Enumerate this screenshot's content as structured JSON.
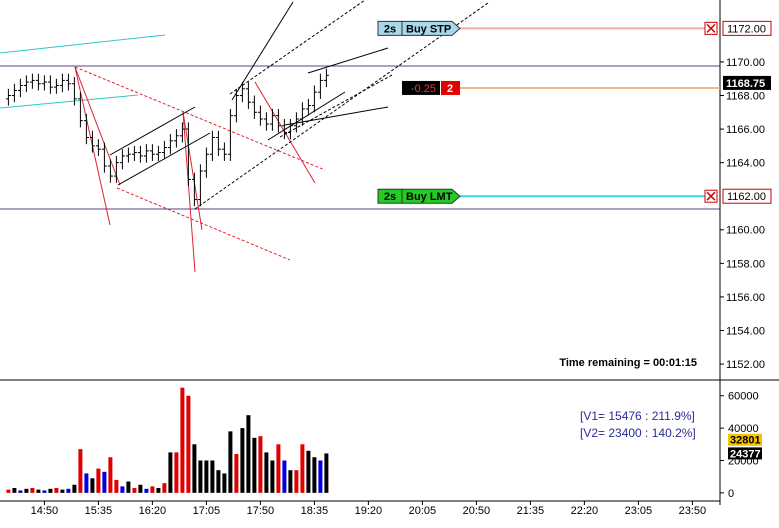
{
  "chart_data": [
    {
      "type": "ohlc",
      "color": "#000000",
      "x": [
        860,
        865,
        870,
        875,
        880,
        885,
        890,
        895,
        900,
        905,
        910,
        915,
        920,
        925,
        930,
        935,
        940,
        945,
        950,
        955,
        960,
        965,
        970,
        975,
        980,
        985,
        990,
        995,
        1000,
        1005,
        1010,
        1015,
        1020,
        1025,
        1030,
        1035,
        1040,
        1045,
        1050,
        1055,
        1060,
        1065,
        1070,
        1075,
        1080,
        1085,
        1090,
        1095,
        1100,
        1105,
        1110,
        1115,
        1120,
        1125
      ],
      "open": [
        1167.8,
        1168.0,
        1168.3,
        1168.6,
        1168.8,
        1168.9,
        1168.7,
        1168.8,
        1168.5,
        1168.6,
        1168.9,
        1168.7,
        1167.8,
        1166.5,
        1165.5,
        1165.0,
        1164.8,
        1163.8,
        1163.2,
        1164.0,
        1164.4,
        1164.5,
        1164.6,
        1164.4,
        1164.7,
        1164.5,
        1164.6,
        1164.9,
        1165.3,
        1165.6,
        1166.0,
        1163.0,
        1161.8,
        1163.5,
        1164.5,
        1165.5,
        1164.8,
        1164.5,
        1166.8,
        1168.0,
        1168.4,
        1167.6,
        1167.0,
        1166.6,
        1166.3,
        1166.8,
        1166.2,
        1165.8,
        1166.2,
        1166.6,
        1167.2,
        1167.4,
        1168.2,
        1168.9
      ],
      "high": [
        1168.4,
        1168.7,
        1169.0,
        1169.2,
        1169.3,
        1169.3,
        1169.2,
        1169.2,
        1169.0,
        1169.3,
        1169.3,
        1169.1,
        1168.2,
        1166.9,
        1165.9,
        1165.4,
        1165.2,
        1164.2,
        1164.4,
        1164.8,
        1164.9,
        1165.0,
        1165.0,
        1165.1,
        1165.1,
        1165.0,
        1165.3,
        1165.7,
        1166.0,
        1166.4,
        1166.4,
        1163.4,
        1163.9,
        1164.9,
        1165.9,
        1165.9,
        1165.2,
        1167.2,
        1168.4,
        1168.8,
        1168.8,
        1168.0,
        1167.4,
        1167.0,
        1167.2,
        1167.2,
        1166.6,
        1166.6,
        1167.0,
        1167.6,
        1167.8,
        1168.6,
        1169.3,
        1169.6
      ],
      "low": [
        1167.4,
        1167.6,
        1167.9,
        1168.2,
        1168.4,
        1168.3,
        1168.3,
        1168.1,
        1168.1,
        1168.2,
        1168.3,
        1167.4,
        1166.1,
        1165.1,
        1164.6,
        1164.4,
        1163.4,
        1162.8,
        1162.8,
        1163.6,
        1164.0,
        1164.1,
        1164.0,
        1164.0,
        1164.1,
        1164.1,
        1164.2,
        1164.5,
        1164.9,
        1165.2,
        1162.6,
        1161.4,
        1161.4,
        1163.1,
        1164.1,
        1164.4,
        1164.1,
        1164.1,
        1166.4,
        1167.6,
        1167.2,
        1166.6,
        1166.2,
        1165.9,
        1165.9,
        1165.8,
        1165.4,
        1165.4,
        1165.8,
        1166.2,
        1166.8,
        1167.0,
        1167.8,
        1168.5
      ],
      "close": [
        1168.0,
        1168.3,
        1168.6,
        1168.8,
        1168.9,
        1168.7,
        1168.8,
        1168.5,
        1168.6,
        1168.9,
        1168.7,
        1167.8,
        1166.5,
        1165.5,
        1165.0,
        1164.8,
        1163.8,
        1163.2,
        1164.0,
        1164.4,
        1164.5,
        1164.6,
        1164.4,
        1164.7,
        1164.5,
        1164.6,
        1164.9,
        1165.3,
        1165.6,
        1166.0,
        1163.0,
        1161.8,
        1163.5,
        1164.5,
        1165.5,
        1164.8,
        1164.5,
        1166.8,
        1168.0,
        1168.4,
        1167.6,
        1167.0,
        1166.6,
        1166.3,
        1166.8,
        1166.2,
        1165.8,
        1166.2,
        1166.6,
        1167.2,
        1167.4,
        1168.2,
        1168.9,
        1169.2
      ],
      "xlim": [
        853,
        1453
      ],
      "ylim": [
        1151.05,
        1173.69
      ],
      "yticks": [
        {
          "value": 1152,
          "label": "1152.00"
        },
        {
          "value": 1154,
          "label": "1154.00"
        },
        {
          "value": 1156,
          "label": "1156.00"
        },
        {
          "value": 1158,
          "label": "1158.00"
        },
        {
          "value": 1160,
          "label": "1160.00"
        },
        {
          "value": 1164,
          "label": "1164.00"
        },
        {
          "value": 1166,
          "label": "1166.00"
        },
        {
          "value": 1168,
          "label": "1168.00"
        },
        {
          "value": 1170,
          "label": "1170.00"
        }
      ],
      "orders": [
        {
          "label": "2s",
          "text": "Buy STP",
          "price": {
            "value": 1172,
            "label": "1172.00"
          },
          "color": "#f4a8b0",
          "tag_color": "#a8d8ea"
        },
        {
          "label": "2s",
          "text": "Buy LMT",
          "price": {
            "value": 1162,
            "label": "1162.00"
          },
          "color": "#33d6e8",
          "tag_color": "#22cc22"
        }
      ],
      "position": {
        "pnl": -0.25,
        "quantity": 2,
        "price": 1168.45,
        "color": "#f0a060"
      },
      "last_price": 1168.75,
      "annotation": "Time remaining = 00:01:15"
    },
    {
      "type": "bar",
      "x": [
        860,
        865,
        870,
        875,
        880,
        885,
        890,
        895,
        900,
        905,
        910,
        915,
        920,
        925,
        930,
        935,
        940,
        945,
        950,
        955,
        960,
        965,
        970,
        975,
        980,
        985,
        990,
        995,
        1000,
        1005,
        1010,
        1015,
        1020,
        1025,
        1030,
        1035,
        1040,
        1045,
        1050,
        1055,
        1060,
        1065,
        1070,
        1075,
        1080,
        1085,
        1090,
        1095,
        1100,
        1105,
        1110,
        1115,
        1120,
        1125
      ],
      "values": [
        2000,
        3000,
        1500,
        2500,
        3000,
        2000,
        1500,
        2500,
        3000,
        2000,
        2500,
        5000,
        27000,
        12000,
        9000,
        15000,
        13000,
        22000,
        8000,
        4000,
        7000,
        3000,
        5000,
        2500,
        4000,
        3000,
        6000,
        25000,
        25000,
        65000,
        60000,
        30000,
        20000,
        20000,
        20000,
        14000,
        12000,
        38000,
        24000,
        40000,
        48000,
        34000,
        35000,
        25000,
        20000,
        30000,
        20000,
        14000,
        14000,
        30000,
        26000,
        22000,
        20000,
        24377
      ],
      "colors": [
        "#e00000",
        "#000000",
        "#0000e0",
        "#000000",
        "#e00000",
        "#000000",
        "#0000e0",
        "#000000",
        "#e00000",
        "#000000",
        "#0000e0",
        "#000000",
        "#e00000",
        "#0000e0",
        "#000000",
        "#e00000",
        "#0000e0",
        "#e00000",
        "#e00000",
        "#0000e0",
        "#000000",
        "#e00000",
        "#000000",
        "#0000e0",
        "#e00000",
        "#000000",
        "#e00000",
        "#000000",
        "#e00000",
        "#e00000",
        "#e00000",
        "#000000",
        "#000000",
        "#000000",
        "#000000",
        "#000000",
        "#000000",
        "#000000",
        "#e00000",
        "#000000",
        "#000000",
        "#000000",
        "#e00000",
        "#000000",
        "#000000",
        "#e00000",
        "#0000e0",
        "#000000",
        "#e00000",
        "#e00000",
        "#000000",
        "#000000",
        "#0000e0",
        "#000000"
      ],
      "xlim": [
        853,
        1453
      ],
      "ylim": [
        -7500,
        68500
      ],
      "yticks": [
        0,
        20000,
        40000,
        60000
      ],
      "xticks": [
        {
          "value": 890,
          "label": "14:50"
        },
        {
          "value": 935,
          "label": "15:35"
        },
        {
          "value": 980,
          "label": "16:20"
        },
        {
          "value": 1025,
          "label": "17:05"
        },
        {
          "value": 1070,
          "label": "17:50"
        },
        {
          "value": 1115,
          "label": "18:35"
        },
        {
          "value": 1160,
          "label": "19:20"
        },
        {
          "value": 1205,
          "label": "20:05"
        },
        {
          "value": 1250,
          "label": "20:50"
        },
        {
          "value": 1295,
          "label": "21:35"
        },
        {
          "value": 1340,
          "label": "22:20"
        },
        {
          "value": 1385,
          "label": "23:05"
        },
        {
          "value": 1430,
          "label": "23:50"
        }
      ],
      "annotations": [
        "[V1= 15476 : 211.9%]",
        "[V2= 23400 : 140.2%]"
      ],
      "markers": [
        32801,
        24377
      ],
      "marker_colors": [
        "#f5c400",
        "#000000"
      ]
    }
  ]
}
